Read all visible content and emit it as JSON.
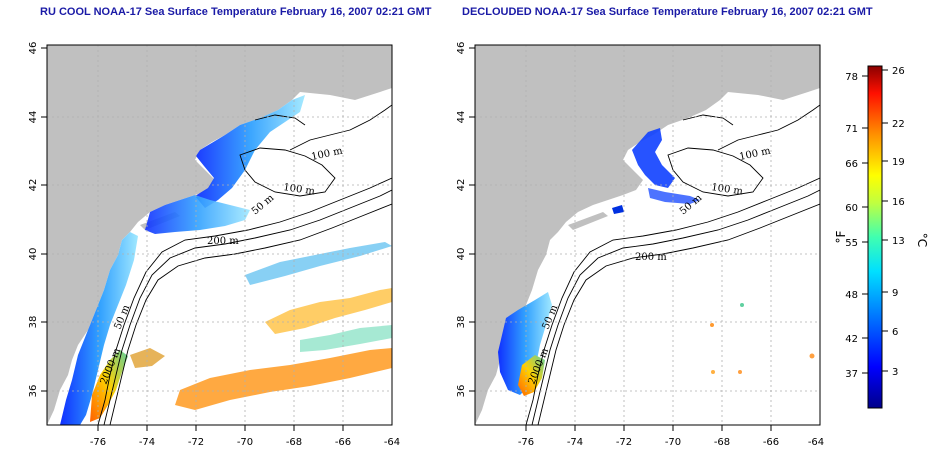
{
  "left_panel": {
    "title": "RU COOL NOAA-17 Sea Surface Temperature February 16, 2007 02:21 GMT"
  },
  "right_panel": {
    "title": "DECLOUDED NOAA-17 Sea Surface Temperature February 16, 2007 02:21 GMT"
  },
  "axes": {
    "lon_ticks": [
      "-76",
      "-74",
      "-72",
      "-70",
      "-68",
      "-66",
      "-64"
    ],
    "lat_ticks": [
      "46",
      "44",
      "42",
      "40",
      "38",
      "36"
    ]
  },
  "contour_labels": [
    "100 m",
    "100 m",
    "50 m",
    "200 m",
    "50 m",
    "2000 m"
  ],
  "colorbar": {
    "unit_f": "°F",
    "unit_c": "°C",
    "f_ticks": [
      "78",
      "71",
      "66",
      "60",
      "55",
      "48",
      "42",
      "37"
    ],
    "c_ticks": [
      "26",
      "22",
      "19",
      "16",
      "13",
      "9",
      "6",
      "3"
    ]
  },
  "colors": {
    "land": "#c0c0c0",
    "title": "#1a1aa6",
    "grid": "#b0b0b0"
  }
}
